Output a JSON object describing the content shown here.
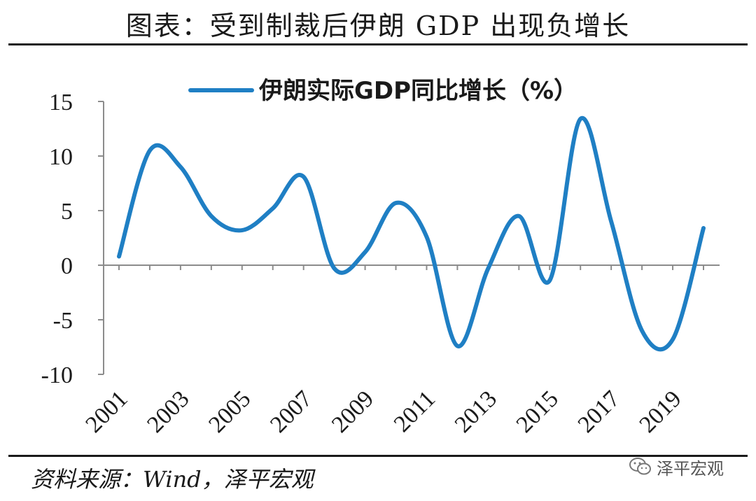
{
  "header": {
    "title": "图表：受到制裁后伊朗 GDP 出现负增长"
  },
  "footer": {
    "source": "资料来源：Wind，泽平宏观",
    "brand": "泽平宏观"
  },
  "colors": {
    "line": "#1f7fc4",
    "axis": "#8c8c8c",
    "text": "#1a1a1a"
  },
  "chart_data": {
    "type": "line",
    "x": [
      2001,
      2002,
      2003,
      2004,
      2005,
      2006,
      2007,
      2008,
      2009,
      2010,
      2011,
      2012,
      2013,
      2014,
      2015,
      2016,
      2017,
      2018,
      2019,
      2020
    ],
    "series": [
      {
        "name": "伊朗实际GDP同比增长（%）",
        "values": [
          0.8,
          10.5,
          9.0,
          4.5,
          3.2,
          5.2,
          8.1,
          -0.3,
          1.2,
          5.7,
          2.6,
          -7.4,
          -0.3,
          4.5,
          -1.4,
          13.4,
          4.0,
          -6.0,
          -6.8,
          3.4
        ]
      }
    ],
    "x_tick_labels": [
      "2001",
      "2003",
      "2005",
      "2007",
      "2009",
      "2011",
      "2013",
      "2015",
      "2017",
      "2019"
    ],
    "y_tick_labels": [
      "15",
      "10",
      "5",
      "0",
      "-5",
      "-10"
    ],
    "ylim": [
      -10,
      15
    ],
    "legend_position": "top",
    "grid": false
  }
}
